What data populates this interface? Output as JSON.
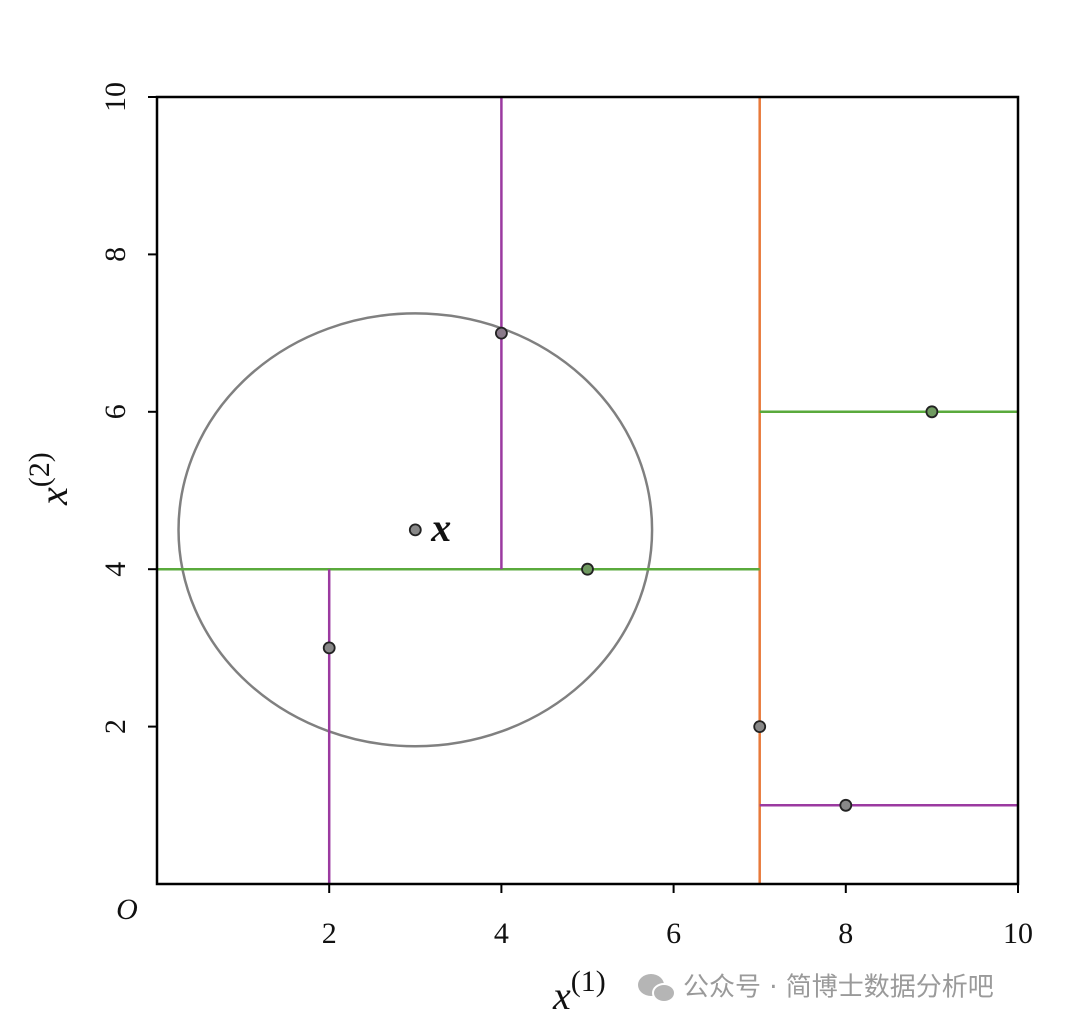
{
  "chart_data": {
    "type": "kd-partition",
    "xlim": [
      0,
      10
    ],
    "ylim": [
      0,
      10
    ],
    "xticks": [
      2,
      4,
      6,
      8,
      10
    ],
    "yticks": [
      2,
      4,
      6,
      8,
      10
    ],
    "origin_label": "O",
    "xlabel": "x",
    "xlabel_sup": "(1)",
    "ylabel": "x",
    "ylabel_sup": "(2)",
    "points": {
      "x": [
        2,
        5,
        9,
        4,
        8,
        7
      ],
      "y": [
        3,
        4,
        6,
        7,
        1,
        2
      ],
      "colors": [
        "#888888",
        "#6f9a60",
        "#6f9a60",
        "#8a7a8a",
        "#888888",
        "#888888"
      ]
    },
    "query": {
      "x": 3,
      "y": 4.5,
      "label": "x",
      "color": "#888888"
    },
    "circle": {
      "radius": 2.75,
      "color": "#808080"
    },
    "splits": [
      {
        "x": [
          7,
          7
        ],
        "y": [
          0,
          10
        ],
        "color": "#e8793a"
      },
      {
        "x": [
          0,
          7
        ],
        "y": [
          4,
          4
        ],
        "color": "#5aaa3c"
      },
      {
        "x": [
          7,
          10
        ],
        "y": [
          6,
          6
        ],
        "color": "#5aaa3c"
      },
      {
        "x": [
          4,
          4
        ],
        "y": [
          4,
          10
        ],
        "color": "#9b3aa0"
      },
      {
        "x": [
          2,
          2
        ],
        "y": [
          0,
          4
        ],
        "color": "#9b3aa0"
      },
      {
        "x": [
          7,
          10
        ],
        "y": [
          1,
          1
        ],
        "color": "#9b3aa0"
      }
    ],
    "watermark": "公众号 · 简博士数据分析吧"
  }
}
